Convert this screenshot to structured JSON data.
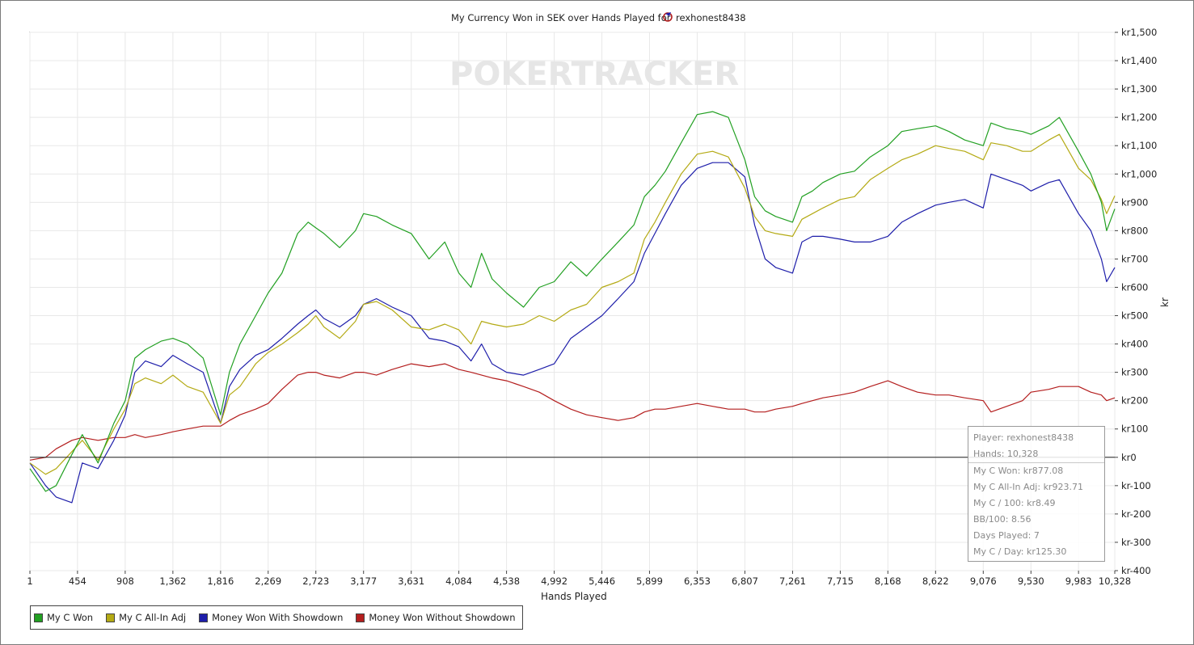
{
  "chart_data": {
    "type": "line",
    "title": "My Currency Won in SEK over Hands Played for",
    "player_name": "rexhonest8438",
    "watermark": "POKERTRACKER",
    "xlabel": "Hands Played",
    "ylabel": "kr",
    "xlim": [
      1,
      10328
    ],
    "ylim": [
      -400,
      1500
    ],
    "x_ticks": [
      1,
      454,
      908,
      1362,
      1816,
      2269,
      2723,
      3177,
      3631,
      4084,
      4538,
      4992,
      5446,
      5899,
      6353,
      6807,
      7261,
      7715,
      8168,
      8622,
      9076,
      9530,
      9983,
      10328
    ],
    "x_tick_labels": [
      "1",
      "454",
      "908",
      "1,362",
      "1,816",
      "2,269",
      "2,723",
      "3,177",
      "3,631",
      "4,084",
      "4,538",
      "4,992",
      "5,446",
      "5,899",
      "6,353",
      "6,807",
      "7,261",
      "7,715",
      "8,168",
      "8,622",
      "9,076",
      "9,530",
      "9,983",
      "10,328"
    ],
    "y_ticks": [
      -400,
      -300,
      -200,
      -100,
      0,
      100,
      200,
      300,
      400,
      500,
      600,
      700,
      800,
      900,
      1000,
      1100,
      1200,
      1300,
      1400,
      1500
    ],
    "y_tick_labels": [
      "kr-400",
      "kr-300",
      "kr-200",
      "kr-100",
      "kr0",
      "kr100",
      "kr200",
      "kr300",
      "kr400",
      "kr500",
      "kr600",
      "kr700",
      "kr800",
      "kr900",
      "kr1,000",
      "kr1,100",
      "kr1,200",
      "kr1,300",
      "kr1,400",
      "kr1,500"
    ],
    "grid": true,
    "legend_position": "bottom-left",
    "series": [
      {
        "name": "My C Won",
        "color": "#22a022",
        "x": [
          1,
          150,
          250,
          400,
          500,
          650,
          800,
          908,
          1000,
          1100,
          1250,
          1362,
          1500,
          1650,
          1816,
          1900,
          2000,
          2150,
          2269,
          2400,
          2550,
          2650,
          2723,
          2800,
          2950,
          3100,
          3177,
          3300,
          3450,
          3631,
          3800,
          3950,
          4084,
          4200,
          4300,
          4400,
          4538,
          4700,
          4850,
          4992,
          5150,
          5300,
          5446,
          5600,
          5750,
          5850,
          5950,
          6050,
          6200,
          6353,
          6500,
          6650,
          6807,
          6900,
          7000,
          7100,
          7261,
          7350,
          7450,
          7550,
          7715,
          7850,
          8000,
          8168,
          8300,
          8450,
          8622,
          8750,
          8900,
          9076,
          9150,
          9300,
          9450,
          9530,
          9700,
          9800,
          9983,
          10100,
          10200,
          10250,
          10328
        ],
        "values": [
          -40,
          -120,
          -100,
          10,
          80,
          -20,
          120,
          200,
          350,
          380,
          410,
          420,
          400,
          350,
          150,
          300,
          400,
          500,
          580,
          650,
          790,
          830,
          810,
          790,
          740,
          800,
          860,
          850,
          820,
          790,
          700,
          760,
          650,
          600,
          720,
          630,
          580,
          530,
          600,
          620,
          690,
          640,
          700,
          760,
          820,
          920,
          960,
          1010,
          1110,
          1210,
          1220,
          1200,
          1050,
          920,
          870,
          850,
          830,
          920,
          940,
          970,
          1000,
          1010,
          1060,
          1100,
          1150,
          1160,
          1170,
          1150,
          1120,
          1100,
          1180,
          1160,
          1150,
          1140,
          1170,
          1200,
          1080,
          1000,
          900,
          800,
          877
        ]
      },
      {
        "name": "My C All-In Adj",
        "color": "#b4aa14",
        "x": [
          1,
          150,
          250,
          400,
          500,
          650,
          800,
          908,
          1000,
          1100,
          1250,
          1362,
          1500,
          1650,
          1816,
          1900,
          2000,
          2150,
          2269,
          2400,
          2550,
          2650,
          2723,
          2800,
          2950,
          3100,
          3177,
          3300,
          3450,
          3631,
          3800,
          3950,
          4084,
          4200,
          4300,
          4400,
          4538,
          4700,
          4850,
          4992,
          5150,
          5300,
          5446,
          5600,
          5750,
          5850,
          5950,
          6050,
          6200,
          6353,
          6500,
          6650,
          6807,
          6900,
          7000,
          7100,
          7261,
          7350,
          7450,
          7550,
          7715,
          7850,
          8000,
          8168,
          8300,
          8450,
          8622,
          8750,
          8900,
          9076,
          9150,
          9300,
          9450,
          9530,
          9700,
          9800,
          9983,
          10100,
          10200,
          10250,
          10328
        ],
        "values": [
          -20,
          -60,
          -40,
          20,
          60,
          -10,
          100,
          170,
          260,
          280,
          260,
          290,
          250,
          230,
          120,
          220,
          250,
          330,
          370,
          400,
          440,
          470,
          500,
          460,
          420,
          480,
          540,
          550,
          520,
          460,
          450,
          470,
          450,
          400,
          480,
          470,
          460,
          470,
          500,
          480,
          520,
          540,
          600,
          620,
          650,
          770,
          830,
          900,
          1000,
          1070,
          1080,
          1060,
          950,
          850,
          800,
          790,
          780,
          840,
          860,
          880,
          910,
          920,
          980,
          1020,
          1050,
          1070,
          1100,
          1090,
          1080,
          1050,
          1110,
          1100,
          1080,
          1080,
          1120,
          1140,
          1020,
          980,
          910,
          860,
          923
        ]
      },
      {
        "name": "Money Won With Showdown",
        "color": "#1e1eaa",
        "x": [
          1,
          150,
          250,
          400,
          500,
          650,
          800,
          908,
          1000,
          1100,
          1250,
          1362,
          1500,
          1650,
          1816,
          1900,
          2000,
          2150,
          2269,
          2400,
          2550,
          2650,
          2723,
          2800,
          2950,
          3100,
          3177,
          3300,
          3450,
          3631,
          3800,
          3950,
          4084,
          4200,
          4300,
          4400,
          4538,
          4700,
          4850,
          4992,
          5150,
          5300,
          5446,
          5600,
          5750,
          5850,
          5950,
          6050,
          6200,
          6353,
          6500,
          6650,
          6807,
          6900,
          7000,
          7100,
          7261,
          7350,
          7450,
          7550,
          7715,
          7850,
          8000,
          8168,
          8300,
          8450,
          8622,
          8750,
          8900,
          9076,
          9150,
          9300,
          9450,
          9530,
          9700,
          9800,
          9983,
          10100,
          10200,
          10250,
          10328
        ],
        "values": [
          -20,
          -100,
          -140,
          -160,
          -20,
          -40,
          60,
          150,
          300,
          340,
          320,
          360,
          330,
          300,
          120,
          250,
          310,
          360,
          380,
          420,
          470,
          500,
          520,
          490,
          460,
          500,
          540,
          560,
          530,
          500,
          420,
          410,
          390,
          340,
          400,
          330,
          300,
          290,
          310,
          330,
          420,
          460,
          500,
          560,
          620,
          720,
          790,
          860,
          960,
          1020,
          1040,
          1040,
          990,
          820,
          700,
          670,
          650,
          760,
          780,
          780,
          770,
          760,
          760,
          780,
          830,
          860,
          890,
          900,
          910,
          880,
          1000,
          980,
          960,
          940,
          970,
          980,
          860,
          800,
          700,
          620,
          670
        ]
      },
      {
        "name": "Money Won Without Showdown",
        "color": "#b41e1e",
        "x": [
          1,
          150,
          250,
          400,
          500,
          650,
          800,
          908,
          1000,
          1100,
          1250,
          1362,
          1500,
          1650,
          1816,
          1900,
          2000,
          2150,
          2269,
          2400,
          2550,
          2650,
          2723,
          2800,
          2950,
          3100,
          3177,
          3300,
          3450,
          3631,
          3800,
          3950,
          4084,
          4200,
          4300,
          4400,
          4538,
          4700,
          4850,
          4992,
          5150,
          5300,
          5446,
          5600,
          5750,
          5850,
          5950,
          6050,
          6200,
          6353,
          6500,
          6650,
          6807,
          6900,
          7000,
          7100,
          7261,
          7350,
          7450,
          7550,
          7715,
          7850,
          8000,
          8168,
          8300,
          8450,
          8622,
          8750,
          8900,
          9076,
          9150,
          9300,
          9450,
          9530,
          9700,
          9800,
          9983,
          10100,
          10200,
          10250,
          10328
        ],
        "values": [
          -10,
          0,
          30,
          60,
          70,
          60,
          70,
          70,
          80,
          70,
          80,
          90,
          100,
          110,
          110,
          130,
          150,
          170,
          190,
          240,
          290,
          300,
          300,
          290,
          280,
          300,
          300,
          290,
          310,
          330,
          320,
          330,
          310,
          300,
          290,
          280,
          270,
          250,
          230,
          200,
          170,
          150,
          140,
          130,
          140,
          160,
          170,
          170,
          180,
          190,
          180,
          170,
          170,
          160,
          160,
          170,
          180,
          190,
          200,
          210,
          220,
          230,
          250,
          270,
          250,
          230,
          220,
          220,
          210,
          200,
          160,
          180,
          200,
          230,
          240,
          250,
          250,
          230,
          220,
          200,
          210
        ]
      }
    ]
  },
  "stats": {
    "player": "Player: rexhonest8438",
    "hands": "Hands: 10,328",
    "my_c_won": "My C Won: kr877.08",
    "all_in_adj": "My C All-In Adj: kr923.71",
    "per_100": "My C / 100: kr8.49",
    "bb_100": "BB/100: 8.56",
    "days_played": "Days Played: 7",
    "per_day": "My C / Day: kr125.30"
  }
}
